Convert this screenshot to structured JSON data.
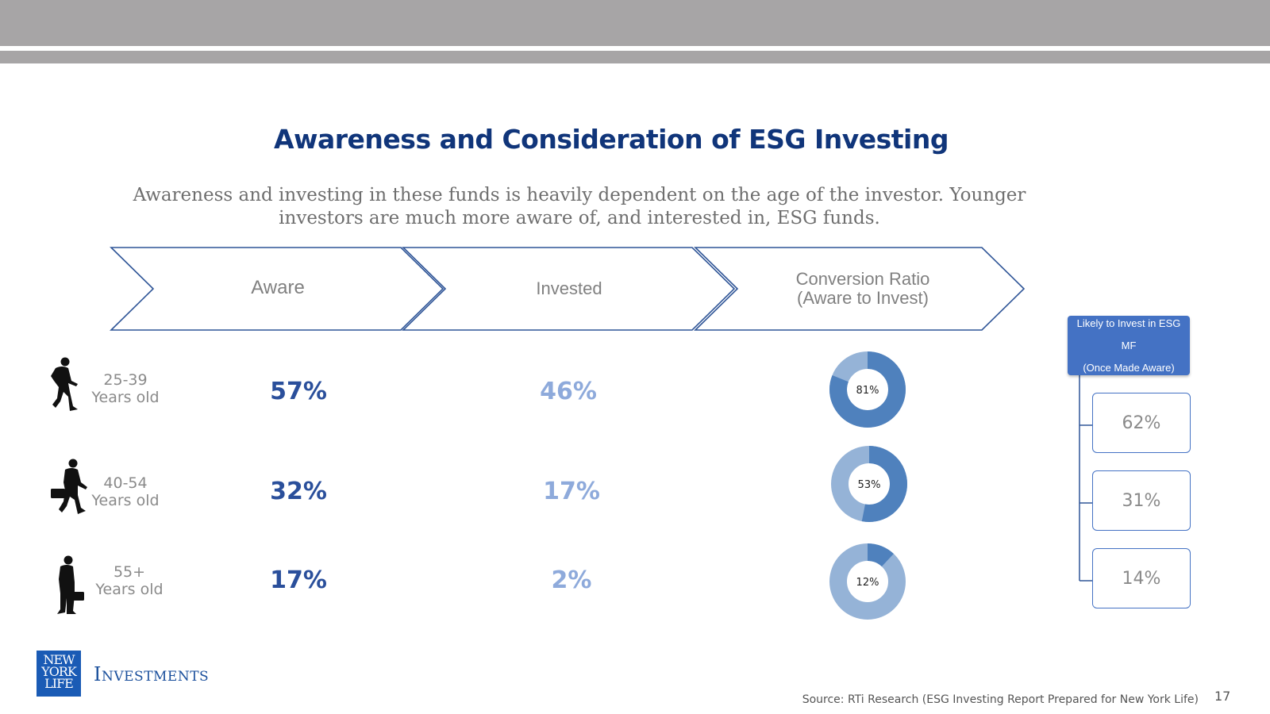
{
  "slide": {
    "title": "Awareness and Consideration of ESG Investing",
    "subtitle": "Awareness and investing in these funds is heavily dependent on the age of the investor. Younger investors are much more aware of, and interested in, ESG funds.",
    "page_number": "17",
    "source": "Source: RTi Research (ESG Investing Report Prepared for New York Life)",
    "brand": "Investments",
    "logo_text": [
      "NEW",
      "YORK",
      "LIFE"
    ]
  },
  "colors": {
    "title": "#10357a",
    "chevron_border": "#2f5597",
    "aware_value": "#2a4f9b",
    "invested_value": "#8eaadb",
    "donut_dark": "#4f81bd",
    "donut_light": "#95b3d7",
    "likely_header": "#4472c4",
    "bar_gray": "#a7a5a6"
  },
  "stages": {
    "aware": "Aware",
    "invested": "Invested",
    "conversion_line1": "Conversion Ratio",
    "conversion_line2": "(Aware to Invest)"
  },
  "likely_header": {
    "line1": "Likely to Invest in ESG",
    "line2": "MF",
    "line3": "(Once Made Aware)"
  },
  "rows": [
    {
      "age": "25-39",
      "age_sub": "Years old",
      "icon": "walking-person-backpack-icon",
      "aware": "57%",
      "invested": "46%",
      "conversion": "81%",
      "likely": "62%"
    },
    {
      "age": "40-54",
      "age_sub": "Years old",
      "icon": "walking-person-briefcase-icon",
      "aware": "32%",
      "invested": "17%",
      "conversion": "53%",
      "likely": "31%"
    },
    {
      "age": "55+",
      "age_sub": "Years old",
      "icon": "standing-person-briefcase-icon",
      "aware": "17%",
      "invested": "2%",
      "conversion": "12%",
      "likely": "14%"
    }
  ],
  "chart_data": {
    "type": "pie",
    "categories": [
      "25-39",
      "40-54",
      "55+"
    ],
    "values": [
      81,
      53,
      12
    ]
  }
}
